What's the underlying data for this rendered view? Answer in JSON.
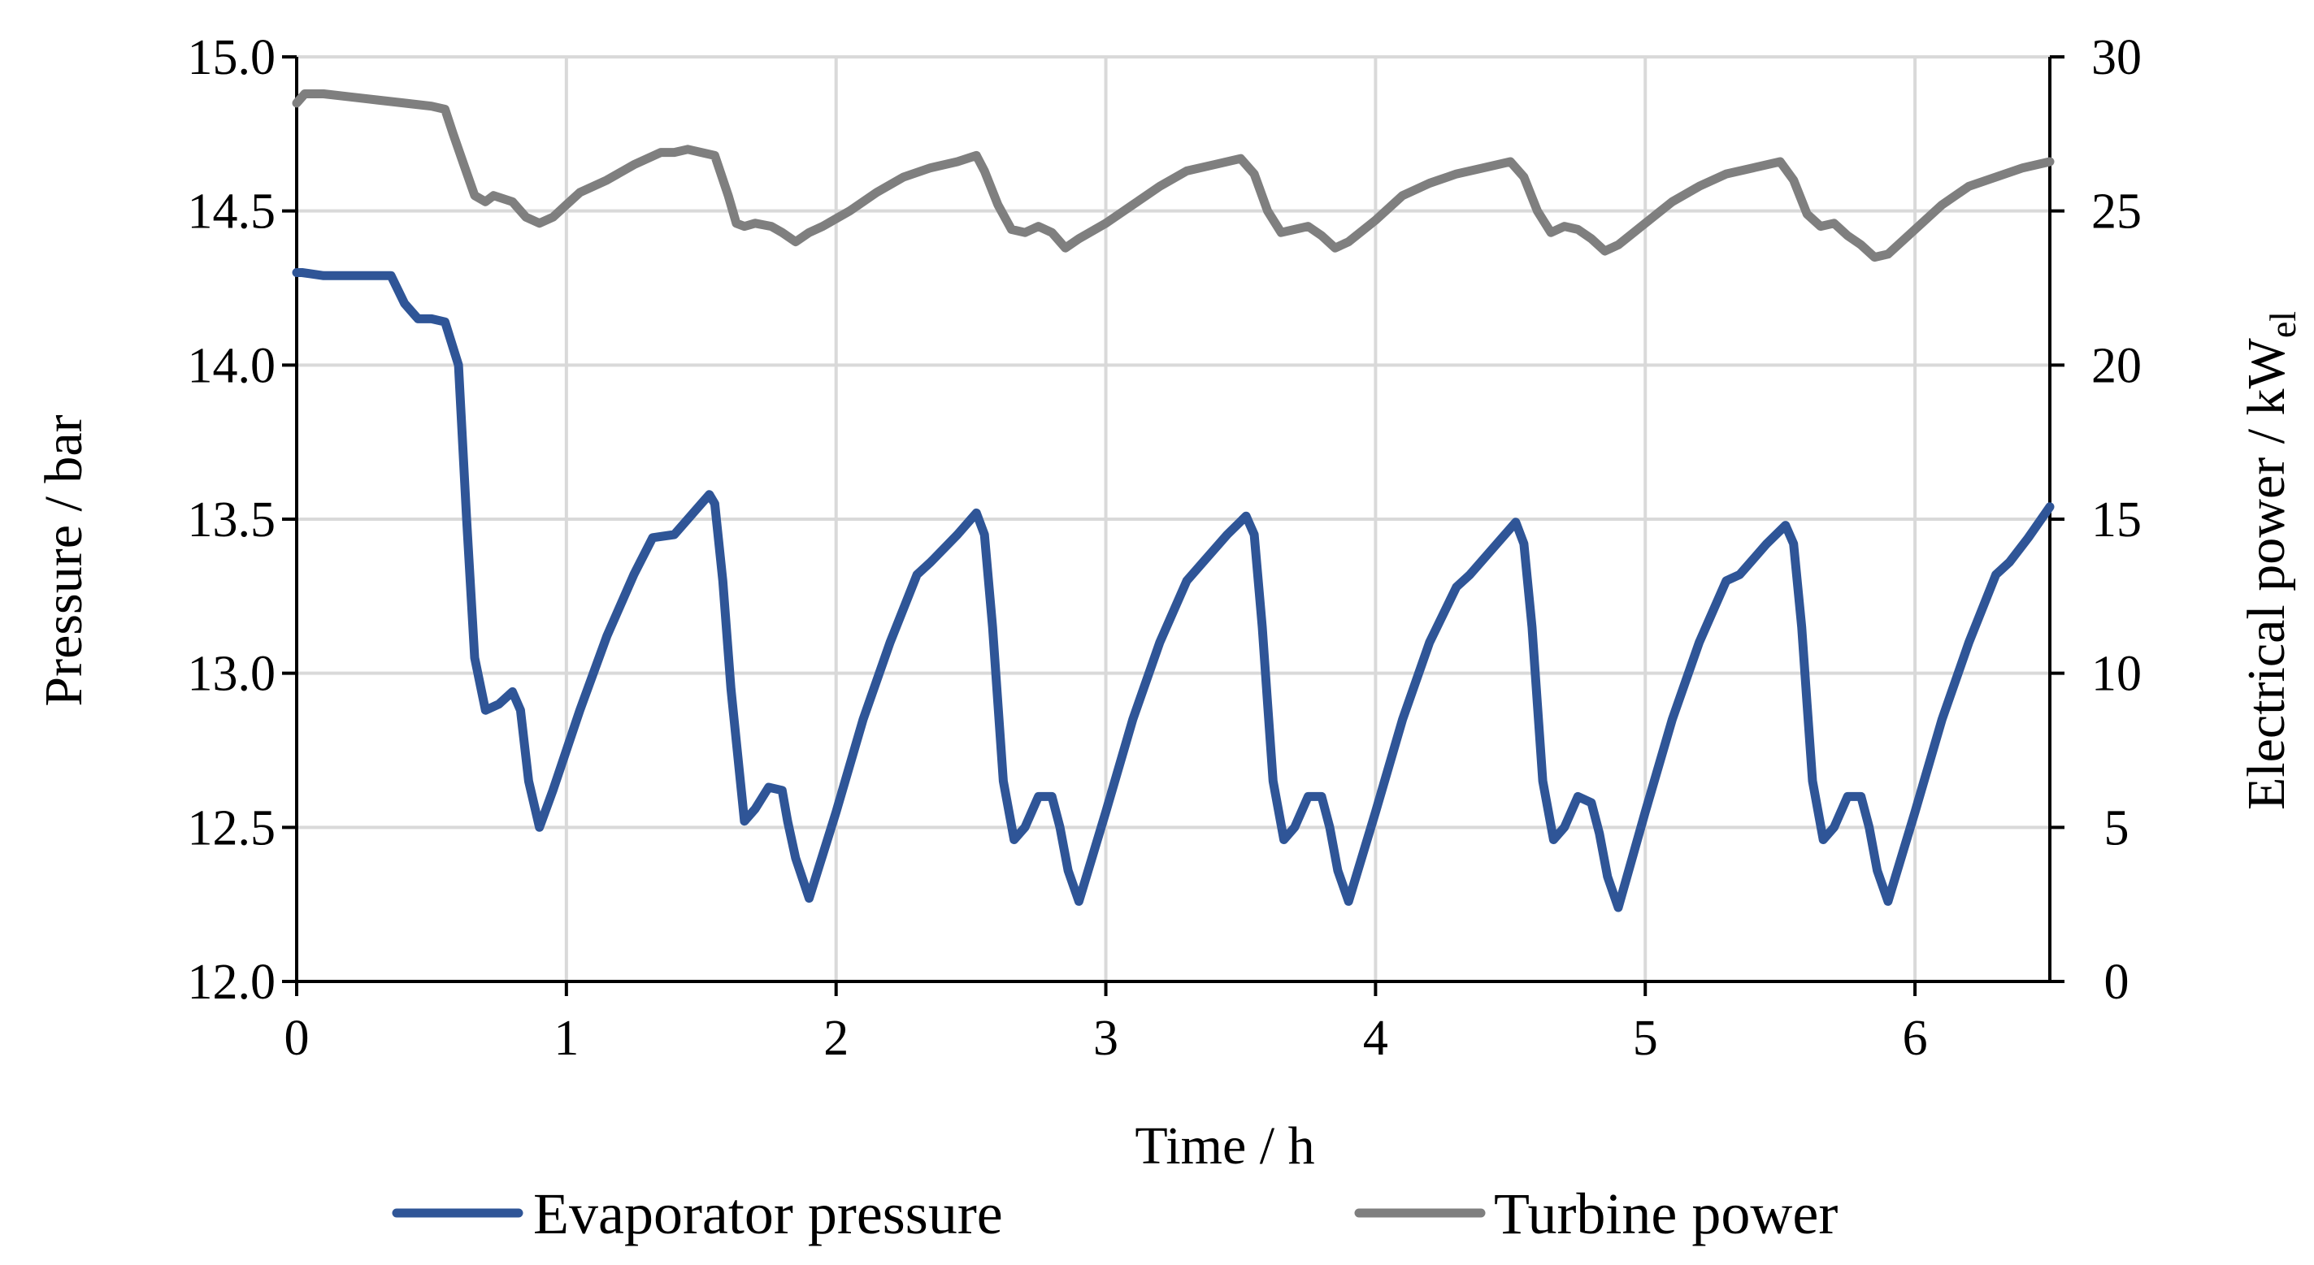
{
  "chart_data": {
    "type": "line",
    "xlabel": "Time / h",
    "ylabel_left": "Pressure / bar",
    "ylabel_right_main": "Electrical power / kW",
    "ylabel_right_subscript": "el",
    "xlim": [
      0,
      6.5
    ],
    "ylim_left": [
      12.0,
      15.0
    ],
    "ylim_right": [
      0,
      30
    ],
    "x_ticks": [
      0,
      1,
      2,
      3,
      4,
      5,
      6
    ],
    "x_tick_labels": [
      "0",
      "1",
      "2",
      "3",
      "4",
      "5",
      "6"
    ],
    "y_left_ticks": [
      12.0,
      12.5,
      13.0,
      13.5,
      14.0,
      14.5,
      15.0
    ],
    "y_left_tick_labels": [
      "12.0",
      "12.5",
      "13.0",
      "13.5",
      "14.0",
      "14.5",
      "15.0"
    ],
    "y_right_ticks": [
      0,
      5,
      10,
      15,
      20,
      25,
      30
    ],
    "y_right_tick_labels": [
      "0",
      "5",
      "10",
      "15",
      "20",
      "25",
      "30"
    ],
    "grid": true,
    "legend_position": "bottom",
    "series": [
      {
        "name": "Evaporator pressure",
        "axis": "left",
        "color": "#2f5597",
        "x": [
          0,
          0.02,
          0.1,
          0.2,
          0.35,
          0.4,
          0.45,
          0.5,
          0.55,
          0.6,
          0.63,
          0.66,
          0.7,
          0.75,
          0.8,
          0.83,
          0.86,
          0.9,
          0.95,
          1.05,
          1.15,
          1.25,
          1.32,
          1.4,
          1.45,
          1.5,
          1.53,
          1.55,
          1.58,
          1.61,
          1.66,
          1.7,
          1.75,
          1.8,
          1.82,
          1.85,
          1.9,
          2.0,
          2.1,
          2.2,
          2.3,
          2.35,
          2.45,
          2.52,
          2.55,
          2.58,
          2.6,
          2.62,
          2.66,
          2.7,
          2.75,
          2.8,
          2.83,
          2.86,
          2.9,
          3.0,
          3.1,
          3.2,
          3.3,
          3.35,
          3.45,
          3.52,
          3.55,
          3.58,
          3.6,
          3.62,
          3.66,
          3.7,
          3.75,
          3.8,
          3.83,
          3.86,
          3.9,
          4.0,
          4.1,
          4.2,
          4.3,
          4.35,
          4.45,
          4.52,
          4.55,
          4.58,
          4.6,
          4.62,
          4.66,
          4.7,
          4.75,
          4.8,
          4.83,
          4.86,
          4.9,
          5.0,
          5.1,
          5.2,
          5.3,
          5.35,
          5.45,
          5.52,
          5.55,
          5.58,
          5.6,
          5.62,
          5.66,
          5.7,
          5.75,
          5.8,
          5.83,
          5.86,
          5.9,
          6.0,
          6.1,
          6.2,
          6.3,
          6.35,
          6.42,
          6.5
        ],
        "y": [
          14.3,
          14.3,
          14.29,
          14.29,
          14.29,
          14.2,
          14.15,
          14.15,
          14.14,
          14.0,
          13.5,
          13.05,
          12.88,
          12.9,
          12.94,
          12.88,
          12.65,
          12.5,
          12.62,
          12.88,
          13.12,
          13.32,
          13.44,
          13.45,
          13.5,
          13.55,
          13.58,
          13.55,
          13.3,
          12.95,
          12.52,
          12.56,
          12.63,
          12.62,
          12.52,
          12.4,
          12.27,
          12.55,
          12.85,
          13.1,
          13.32,
          13.36,
          13.45,
          13.52,
          13.45,
          13.15,
          12.9,
          12.65,
          12.46,
          12.5,
          12.6,
          12.6,
          12.5,
          12.36,
          12.26,
          12.55,
          12.85,
          13.1,
          13.3,
          13.35,
          13.45,
          13.51,
          13.45,
          13.15,
          12.9,
          12.65,
          12.46,
          12.5,
          12.6,
          12.6,
          12.5,
          12.36,
          12.26,
          12.55,
          12.85,
          13.1,
          13.28,
          13.32,
          13.42,
          13.49,
          13.42,
          13.15,
          12.9,
          12.65,
          12.46,
          12.5,
          12.6,
          12.58,
          12.48,
          12.34,
          12.24,
          12.55,
          12.85,
          13.1,
          13.3,
          13.32,
          13.42,
          13.48,
          13.42,
          13.15,
          12.9,
          12.65,
          12.46,
          12.5,
          12.6,
          12.6,
          12.5,
          12.36,
          12.26,
          12.55,
          12.85,
          13.1,
          13.32,
          13.36,
          13.44,
          13.54
        ]
      },
      {
        "name": "Turbine power",
        "axis": "right",
        "color": "#7f7f7f",
        "x": [
          0,
          0.03,
          0.1,
          0.2,
          0.3,
          0.4,
          0.5,
          0.55,
          0.58,
          0.62,
          0.66,
          0.7,
          0.73,
          0.8,
          0.85,
          0.9,
          0.95,
          1.0,
          1.05,
          1.15,
          1.25,
          1.35,
          1.4,
          1.45,
          1.5,
          1.55,
          1.6,
          1.63,
          1.66,
          1.7,
          1.76,
          1.8,
          1.85,
          1.9,
          1.95,
          2.05,
          2.15,
          2.25,
          2.35,
          2.45,
          2.52,
          2.55,
          2.6,
          2.65,
          2.7,
          2.75,
          2.8,
          2.85,
          2.9,
          3.0,
          3.1,
          3.2,
          3.3,
          3.4,
          3.5,
          3.55,
          3.6,
          3.65,
          3.7,
          3.75,
          3.8,
          3.85,
          3.9,
          4.0,
          4.1,
          4.2,
          4.3,
          4.4,
          4.5,
          4.55,
          4.6,
          4.65,
          4.7,
          4.75,
          4.8,
          4.85,
          4.9,
          5.0,
          5.1,
          5.2,
          5.3,
          5.4,
          5.5,
          5.55,
          5.6,
          5.65,
          5.7,
          5.75,
          5.8,
          5.85,
          5.9,
          6.0,
          6.1,
          6.2,
          6.3,
          6.4,
          6.5
        ],
        "y": [
          28.5,
          28.8,
          28.8,
          28.7,
          28.6,
          28.5,
          28.4,
          28.3,
          27.5,
          26.5,
          25.5,
          25.3,
          25.5,
          25.3,
          24.8,
          24.6,
          24.8,
          25.2,
          25.6,
          26.0,
          26.5,
          26.9,
          26.9,
          27.0,
          26.9,
          26.8,
          25.5,
          24.6,
          24.5,
          24.6,
          24.5,
          24.3,
          24.0,
          24.3,
          24.5,
          25.0,
          25.6,
          26.1,
          26.4,
          26.6,
          26.8,
          26.3,
          25.2,
          24.4,
          24.3,
          24.5,
          24.3,
          23.8,
          24.1,
          24.6,
          25.2,
          25.8,
          26.3,
          26.5,
          26.7,
          26.2,
          25.0,
          24.3,
          24.4,
          24.5,
          24.2,
          23.8,
          24.0,
          24.7,
          25.5,
          25.9,
          26.2,
          26.4,
          26.6,
          26.1,
          25.0,
          24.3,
          24.5,
          24.4,
          24.1,
          23.7,
          23.9,
          24.6,
          25.3,
          25.8,
          26.2,
          26.4,
          26.6,
          26.0,
          24.9,
          24.5,
          24.6,
          24.2,
          23.9,
          23.5,
          23.6,
          24.4,
          25.2,
          25.8,
          26.1,
          26.4,
          26.6
        ]
      }
    ]
  }
}
